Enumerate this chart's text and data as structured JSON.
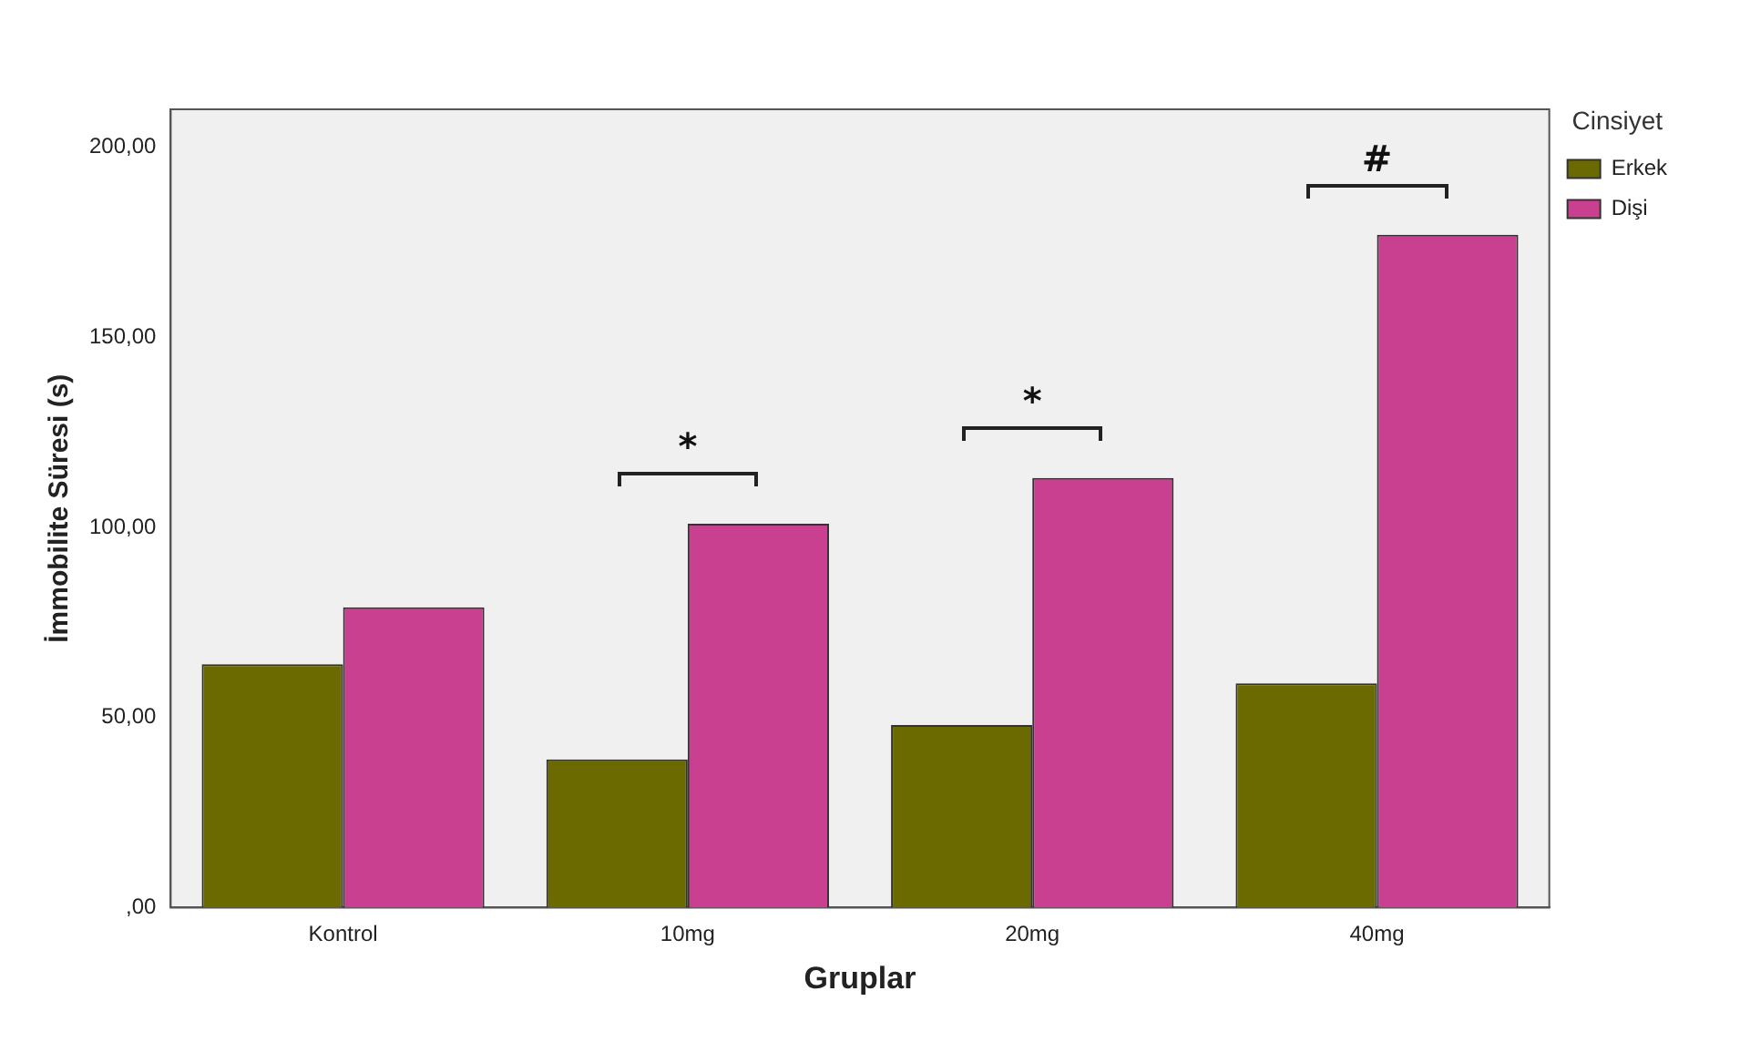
{
  "chart_data": {
    "type": "bar",
    "xlabel": "Gruplar",
    "ylabel": "İmmobilite Süresi (s)",
    "legend_title": "Cinsiyet",
    "legend": "top right",
    "grid": false,
    "categories": [
      "Kontrol",
      "10mg",
      "20mg",
      "40mg"
    ],
    "series": [
      {
        "name": "Erkek",
        "color": "#6b6a00",
        "values": [
          64,
          39,
          48,
          59
        ]
      },
      {
        "name": "Dişi",
        "color": "#c8408f",
        "values": [
          79,
          101,
          113,
          177
        ]
      }
    ],
    "ylim": [
      0,
      210
    ],
    "yticks": [
      {
        "value": 0,
        "label": ",00"
      },
      {
        "value": 50,
        "label": "50,00"
      },
      {
        "value": 100,
        "label": "100,00"
      },
      {
        "value": 150,
        "label": "150,00"
      },
      {
        "value": 200,
        "label": "200,00"
      }
    ],
    "annotations": [
      "*",
      "*",
      "#"
    ]
  }
}
